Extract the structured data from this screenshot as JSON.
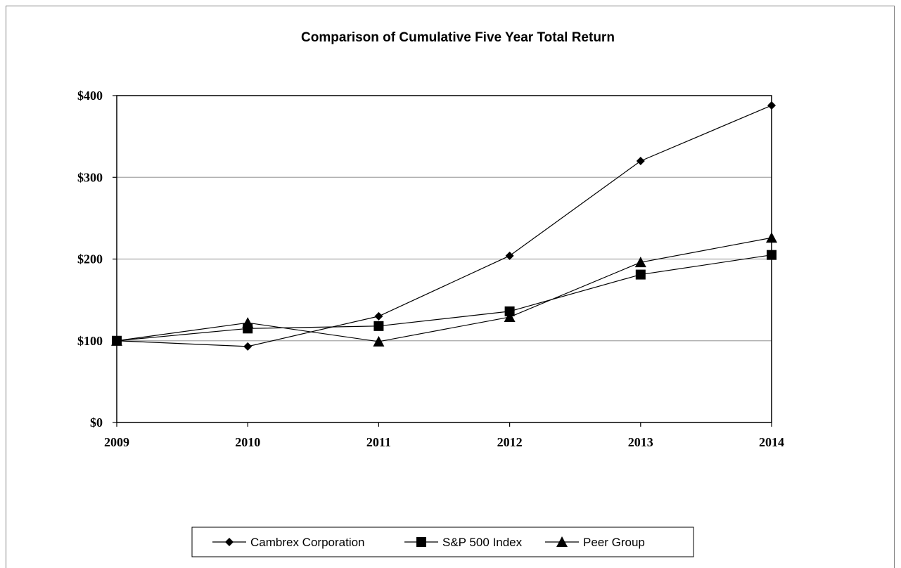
{
  "chart_data": {
    "type": "line",
    "title": "Comparison of Cumulative Five Year Total Return",
    "xlabel": "",
    "ylabel": "",
    "categories": [
      "2009",
      "2010",
      "2011",
      "2012",
      "2013",
      "2014"
    ],
    "ylim": [
      0,
      400
    ],
    "yticks": [
      0,
      100,
      200,
      300,
      400
    ],
    "ytick_labels": [
      "$0",
      "$100",
      "$200",
      "$300",
      "$400"
    ],
    "grid": "horizontal",
    "legend_position": "bottom",
    "series": [
      {
        "name": "Cambrex Corporation",
        "marker": "diamond",
        "values": [
          100,
          93,
          130,
          204,
          320,
          388
        ]
      },
      {
        "name": "S&P 500 Index",
        "marker": "square",
        "values": [
          100,
          115,
          118,
          136,
          181,
          205
        ]
      },
      {
        "name": "Peer Group",
        "marker": "triangle",
        "values": [
          100,
          122,
          99,
          129,
          196,
          226
        ]
      }
    ]
  }
}
